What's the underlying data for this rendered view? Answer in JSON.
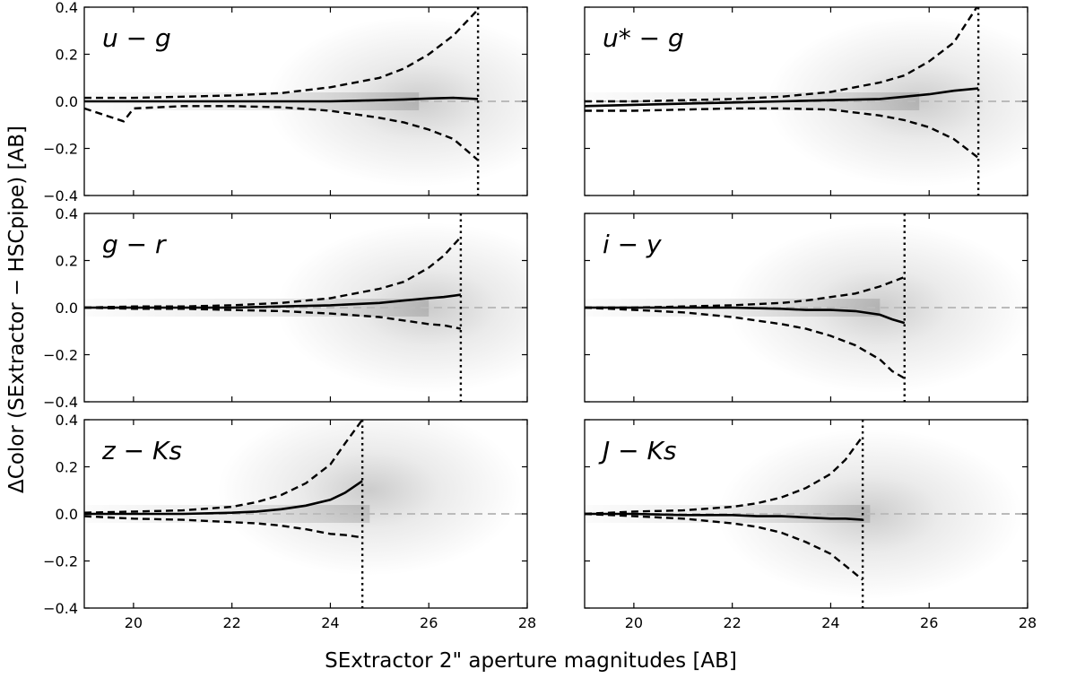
{
  "chart_data": {
    "type": "line",
    "xlabel": "SExtractor 2\" aperture magnitudes [AB]",
    "ylabel": "ΔColor (SExtractor − HSCpipe) [AB]",
    "xlim": [
      19,
      28
    ],
    "ylim": [
      -0.4,
      0.4
    ],
    "x_ticks": [
      "20",
      "22",
      "24",
      "26",
      "28"
    ],
    "y_ticks": [
      "−0.4",
      "−0.2",
      "0.0",
      "0.2",
      "0.4"
    ],
    "colors": {
      "median": "#000000",
      "bounds": "#000000",
      "zero_line": "#bbbbbb",
      "density": "#555555"
    },
    "panels": [
      {
        "label": "u − g",
        "limit_mag": 27.0,
        "x": [
          19.0,
          20.0,
          21.0,
          22.0,
          23.0,
          24.0,
          25.0,
          25.5,
          26.0,
          26.5,
          27.0
        ],
        "series": [
          {
            "role": "median",
            "values": [
              0.0,
              0.0,
              0.0,
              0.0,
              0.0,
              0.0,
              0.005,
              0.008,
              0.012,
              0.015,
              0.01
            ]
          },
          {
            "role": "upper",
            "values": [
              0.015,
              0.015,
              0.02,
              0.025,
              0.035,
              0.06,
              0.1,
              0.14,
              0.2,
              0.28,
              0.39
            ]
          },
          {
            "role": "lower",
            "values": [
              -0.03,
              -0.03,
              -0.02,
              -0.02,
              -0.025,
              -0.04,
              -0.07,
              -0.09,
              -0.12,
              -0.16,
              -0.25
            ]
          }
        ],
        "lower_dip": {
          "x": 19.8,
          "y": -0.085
        },
        "density_center": [
          25.8,
          0.0
        ]
      },
      {
        "label": "u* − g",
        "limit_mag": 27.0,
        "x": [
          19.0,
          20.0,
          21.0,
          22.0,
          23.0,
          24.0,
          25.0,
          25.5,
          26.0,
          26.5,
          27.0
        ],
        "series": [
          {
            "role": "median",
            "values": [
              -0.02,
              -0.015,
              -0.01,
              -0.005,
              0.0,
              0.005,
              0.01,
              0.02,
              0.03,
              0.045,
              0.055
            ]
          },
          {
            "role": "upper",
            "values": [
              0.0,
              0.0,
              0.005,
              0.01,
              0.02,
              0.04,
              0.08,
              0.11,
              0.17,
              0.25,
              0.41
            ]
          },
          {
            "role": "lower",
            "values": [
              -0.04,
              -0.04,
              -0.035,
              -0.03,
              -0.03,
              -0.035,
              -0.06,
              -0.08,
              -0.11,
              -0.16,
              -0.24
            ]
          }
        ],
        "density_center": [
          25.8,
          0.0
        ]
      },
      {
        "label": "g − r",
        "limit_mag": 26.65,
        "x": [
          19.0,
          20.0,
          21.0,
          22.0,
          23.0,
          24.0,
          25.0,
          25.5,
          26.0,
          26.3,
          26.65
        ],
        "series": [
          {
            "role": "median",
            "values": [
              0.0,
              0.0,
              0.0,
              0.0,
              0.005,
              0.01,
              0.02,
              0.03,
              0.04,
              0.045,
              0.055
            ]
          },
          {
            "role": "upper",
            "values": [
              0.0,
              0.005,
              0.005,
              0.01,
              0.02,
              0.04,
              0.08,
              0.11,
              0.17,
              0.22,
              0.3
            ]
          },
          {
            "role": "lower",
            "values": [
              0.0,
              -0.005,
              -0.005,
              -0.01,
              -0.015,
              -0.025,
              -0.04,
              -0.055,
              -0.07,
              -0.075,
              -0.09
            ]
          }
        ],
        "density_center": [
          26.0,
          0.0
        ]
      },
      {
        "label": "i − y",
        "limit_mag": 25.5,
        "x": [
          19.0,
          20.0,
          21.0,
          22.0,
          23.0,
          23.5,
          24.0,
          24.5,
          25.0,
          25.25,
          25.5
        ],
        "series": [
          {
            "role": "median",
            "values": [
              0.0,
              0.0,
              0.0,
              0.0,
              -0.005,
              -0.01,
              -0.01,
              -0.015,
              -0.03,
              -0.05,
              -0.065
            ]
          },
          {
            "role": "upper",
            "values": [
              0.0,
              0.0,
              0.005,
              0.01,
              0.02,
              0.03,
              0.045,
              0.06,
              0.09,
              0.11,
              0.13
            ]
          },
          {
            "role": "lower",
            "values": [
              0.0,
              -0.01,
              -0.02,
              -0.04,
              -0.07,
              -0.09,
              -0.12,
              -0.16,
              -0.22,
              -0.27,
              -0.3
            ]
          }
        ],
        "density_center": [
          25.0,
          0.0
        ]
      },
      {
        "label": "z − Ks",
        "limit_mag": 24.65,
        "x": [
          19.0,
          20.0,
          21.0,
          22.0,
          22.5,
          23.0,
          23.5,
          24.0,
          24.3,
          24.65
        ],
        "series": [
          {
            "role": "median",
            "values": [
              0.0,
              0.0,
              0.0,
              0.005,
              0.01,
              0.02,
              0.035,
              0.06,
              0.09,
              0.14
            ]
          },
          {
            "role": "upper",
            "values": [
              0.005,
              0.01,
              0.015,
              0.03,
              0.05,
              0.08,
              0.13,
              0.21,
              0.3,
              0.4
            ]
          },
          {
            "role": "lower",
            "values": [
              -0.01,
              -0.02,
              -0.025,
              -0.035,
              -0.04,
              -0.05,
              -0.065,
              -0.085,
              -0.09,
              -0.1
            ]
          }
        ],
        "density_center": [
          24.8,
          0.1
        ]
      },
      {
        "label": "J − Ks",
        "limit_mag": 24.65,
        "x": [
          19.0,
          20.0,
          21.0,
          22.0,
          22.5,
          23.0,
          23.5,
          24.0,
          24.3,
          24.65
        ],
        "series": [
          {
            "role": "median",
            "values": [
              0.0,
              0.0,
              -0.005,
              -0.005,
              -0.01,
              -0.01,
              -0.015,
              -0.02,
              -0.02,
              -0.025
            ]
          },
          {
            "role": "upper",
            "values": [
              0.0,
              0.01,
              0.015,
              0.03,
              0.045,
              0.07,
              0.11,
              0.17,
              0.23,
              0.33
            ]
          },
          {
            "role": "lower",
            "values": [
              0.0,
              -0.01,
              -0.02,
              -0.04,
              -0.055,
              -0.08,
              -0.12,
              -0.17,
              -0.22,
              -0.28
            ]
          }
        ],
        "density_center": [
          24.8,
          0.0
        ]
      }
    ]
  }
}
